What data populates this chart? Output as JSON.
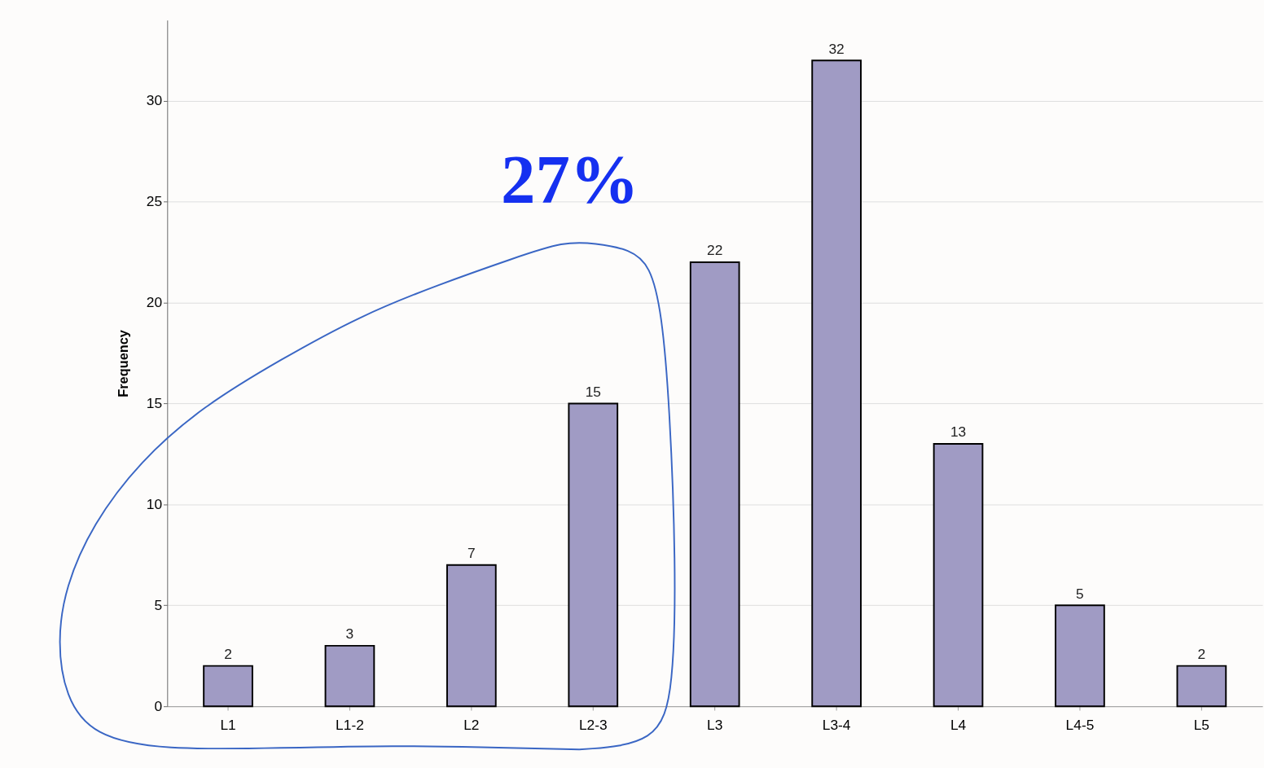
{
  "chart_data": {
    "type": "bar",
    "ylabel": "Frequency",
    "categories": [
      "L1",
      "L1-2",
      "L2",
      "L2-3",
      "L3",
      "L3-4",
      "L4",
      "L4-5",
      "L5"
    ],
    "values": [
      2,
      3,
      7,
      15,
      22,
      32,
      13,
      5,
      2
    ],
    "color": "#a09bc4",
    "ylim": [
      0,
      34
    ],
    "yticks": [
      0,
      5,
      10,
      15,
      20,
      25,
      30
    ],
    "grid": "y",
    "data_labels": true,
    "annotations": [
      "27%"
    ]
  }
}
